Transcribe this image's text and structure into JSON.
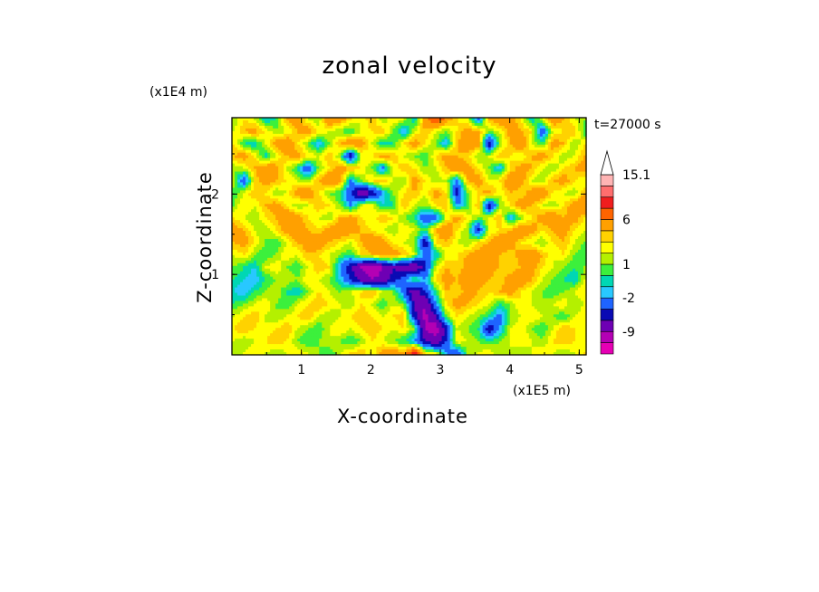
{
  "chart_data": {
    "type": "heatmap",
    "title": "zonal velocity",
    "xlabel": "X-coordinate",
    "ylabel": "Z-coordinate",
    "x_unit": "(x1E5 m)",
    "y_unit": "(x1E4 m)",
    "time_label": "t=27000 s",
    "xlim": [
      0,
      5.1
    ],
    "ylim": [
      0,
      2.95
    ],
    "x_ticks": [
      "1",
      "2",
      "3",
      "4",
      "5"
    ],
    "x_tick_values": [
      1,
      2,
      3,
      4,
      5
    ],
    "y_ticks": [
      "1",
      "2"
    ],
    "y_tick_values": [
      1,
      2
    ],
    "colorbar": {
      "labels": [
        "15.1",
        "6",
        "1",
        "-2",
        "-9"
      ],
      "label_values": [
        15.1,
        6,
        1,
        -2,
        -9
      ],
      "levels": [
        -15,
        -12,
        -9,
        -6,
        -4,
        -2,
        -1,
        0,
        1,
        2,
        3,
        4,
        6,
        9,
        12,
        15.1
      ],
      "colors": [
        "#e600b4",
        "#b400b4",
        "#6e00b4",
        "#0a0ab4",
        "#1e64ff",
        "#28c8ff",
        "#00d7b4",
        "#3cf03c",
        "#b4f000",
        "#ffff00",
        "#ffd200",
        "#ffa000",
        "#ff6400",
        "#f01e1e",
        "#ff6e6e",
        "#ffb4b4"
      ],
      "extend": "max"
    },
    "field": [
      [
        1,
        3,
        2,
        -1,
        0,
        4,
        5,
        2,
        1,
        6,
        5,
        3,
        2,
        4,
        1,
        3,
        2,
        -1,
        5,
        9,
        5,
        3,
        2,
        -3,
        4,
        6,
        5,
        3,
        -1,
        2,
        6,
        4,
        2,
        1
      ],
      [
        2,
        4,
        5,
        3,
        1,
        2,
        4,
        5,
        3,
        2,
        1,
        0,
        2,
        3,
        4,
        1,
        -2,
        2,
        4,
        2,
        1,
        3,
        5,
        4,
        1,
        2,
        5,
        4,
        3,
        -4,
        2,
        3,
        4,
        0
      ],
      [
        3,
        0,
        -1,
        2,
        5,
        6,
        3,
        1,
        -2,
        1,
        4,
        6,
        5,
        2,
        -1,
        0,
        3,
        5,
        3,
        1,
        -2,
        4,
        6,
        5,
        -6,
        1,
        4,
        6,
        2,
        0,
        5,
        4,
        1,
        3
      ],
      [
        4,
        5,
        3,
        -1,
        2,
        4,
        5,
        3,
        2,
        4,
        1,
        -6,
        2,
        3,
        5,
        4,
        2,
        1,
        0,
        3,
        5,
        4,
        3,
        1,
        2,
        4,
        3,
        2,
        4,
        5,
        3,
        1,
        2,
        4
      ],
      [
        1,
        2,
        4,
        6,
        5,
        2,
        0,
        -4,
        1,
        3,
        5,
        4,
        3,
        1,
        -3,
        2,
        4,
        3,
        1,
        2,
        4,
        6,
        5,
        3,
        1,
        -2,
        3,
        5,
        4,
        2,
        1,
        3,
        4,
        5
      ],
      [
        2,
        -4,
        3,
        5,
        4,
        3,
        2,
        1,
        4,
        6,
        5,
        -2,
        1,
        3,
        4,
        2,
        1,
        5,
        3,
        1,
        2,
        -3,
        4,
        5,
        2,
        3,
        6,
        5,
        2,
        1,
        4,
        5,
        3,
        2
      ],
      [
        0,
        2,
        4,
        3,
        1,
        2,
        5,
        6,
        3,
        1,
        0,
        -4,
        -9,
        -6,
        -2,
        1,
        3,
        4,
        2,
        5,
        3,
        -5,
        1,
        3,
        5,
        2,
        4,
        3,
        5,
        6,
        3,
        2,
        1,
        4
      ],
      [
        1,
        3,
        2,
        4,
        5,
        3,
        1,
        2,
        4,
        3,
        1,
        -2,
        2,
        3,
        -1,
        0,
        4,
        2,
        1,
        3,
        4,
        -2,
        0,
        4,
        -6,
        1,
        3,
        5,
        4,
        2,
        1,
        3,
        5,
        6
      ],
      [
        3,
        2,
        1,
        3,
        4,
        6,
        5,
        3,
        2,
        1,
        4,
        5,
        3,
        2,
        4,
        3,
        1,
        0,
        -4,
        -3,
        2,
        5,
        3,
        1,
        2,
        4,
        -2,
        1,
        3,
        5,
        6,
        4,
        5,
        3
      ],
      [
        5,
        4,
        2,
        1,
        3,
        5,
        6,
        4,
        3,
        5,
        6,
        5,
        4,
        3,
        2,
        1,
        3,
        2,
        0,
        4,
        6,
        3,
        1,
        -5,
        2,
        3,
        4,
        6,
        5,
        3,
        4,
        5,
        3,
        2
      ],
      [
        4,
        5,
        3,
        1,
        0,
        2,
        4,
        5,
        6,
        4,
        3,
        2,
        4,
        6,
        5,
        3,
        2,
        1,
        -6,
        3,
        4,
        2,
        1,
        3,
        4,
        6,
        5,
        3,
        2,
        1,
        3,
        4,
        2,
        1
      ],
      [
        2,
        3,
        1,
        0,
        1,
        3,
        2,
        4,
        3,
        2,
        1,
        0,
        3,
        4,
        6,
        5,
        4,
        2,
        -3,
        -1,
        2,
        3,
        4,
        5,
        6,
        4,
        3,
        5,
        6,
        4,
        2,
        3,
        1,
        0
      ],
      [
        1,
        0,
        -1,
        2,
        3,
        1,
        0,
        2,
        4,
        3,
        -2,
        -6,
        -9,
        -12,
        -9,
        -6,
        -8,
        -9,
        -5,
        2,
        4,
        3,
        5,
        6,
        5,
        4,
        3,
        4,
        5,
        3,
        2,
        1,
        0,
        1
      ],
      [
        0,
        -1,
        -2,
        0,
        1,
        2,
        1,
        3,
        2,
        1,
        -1,
        -4,
        -7,
        -9,
        -8,
        -5,
        -3,
        1,
        -2,
        3,
        5,
        4,
        6,
        5,
        4,
        3,
        5,
        6,
        4,
        2,
        1,
        0,
        -1,
        2
      ],
      [
        -1,
        -2,
        0,
        1,
        2,
        0,
        -1,
        1,
        3,
        2,
        1,
        2,
        3,
        4,
        2,
        1,
        -3,
        -8,
        -4,
        0,
        4,
        3,
        5,
        4,
        3,
        4,
        5,
        3,
        2,
        1,
        0,
        1,
        2,
        3
      ],
      [
        0,
        1,
        2,
        3,
        1,
        0,
        2,
        3,
        4,
        3,
        2,
        1,
        3,
        2,
        0,
        2,
        1,
        -6,
        -9,
        -2,
        3,
        5,
        4,
        3,
        2,
        0,
        1,
        3,
        2,
        1,
        2,
        3,
        1,
        2
      ],
      [
        2,
        3,
        4,
        2,
        1,
        2,
        3,
        4,
        2,
        1,
        2,
        3,
        4,
        3,
        2,
        3,
        4,
        -5,
        -10,
        -6,
        1,
        3,
        2,
        1,
        0,
        -3,
        1,
        2,
        3,
        2,
        1,
        0,
        2,
        3
      ],
      [
        3,
        4,
        3,
        2,
        3,
        4,
        2,
        1,
        0,
        2,
        3,
        2,
        3,
        4,
        3,
        2,
        3,
        1,
        -9,
        -11,
        -5,
        2,
        1,
        0,
        -6,
        -2,
        2,
        3,
        1,
        0,
        2,
        4,
        3,
        2
      ],
      [
        2,
        1,
        2,
        3,
        4,
        3,
        1,
        0,
        1,
        2,
        1,
        0,
        1,
        3,
        2,
        1,
        0,
        -2,
        -6,
        -8,
        -4,
        3,
        2,
        1,
        0,
        1,
        2,
        3,
        2,
        1,
        3,
        4,
        3,
        2
      ],
      [
        1,
        2,
        3,
        2,
        1,
        2,
        3,
        2,
        1,
        0,
        2,
        3,
        4,
        2,
        5,
        6,
        4,
        10,
        3,
        2,
        -2,
        -4,
        1,
        2,
        3,
        1,
        2,
        1,
        2,
        3,
        2,
        1,
        2,
        3
      ]
    ]
  }
}
